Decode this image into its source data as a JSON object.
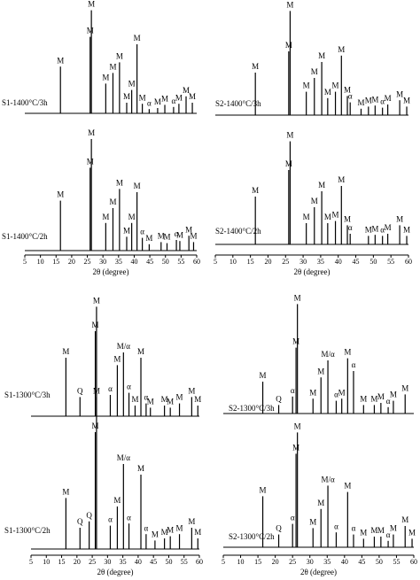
{
  "chart_data": [
    {
      "type": "stem",
      "xlabel": "2θ (degree)",
      "xlim": [
        5,
        60
      ],
      "xticks": [
        5,
        10,
        15,
        20,
        25,
        30,
        35,
        40,
        45,
        50,
        55,
        60
      ],
      "series": [
        {
          "name": "S1-1400°C/3h",
          "color": "#000000",
          "x": [
            16.4,
            25.9,
            26.3,
            30.9,
            33.2,
            35.3,
            37.6,
            39.2,
            40.9,
            42.6,
            44.8,
            47.5,
            49.8,
            52.6,
            54.3,
            56.6,
            58.6
          ],
          "values": [
            44,
            72,
            97,
            28,
            38,
            48,
            10,
            22,
            65,
            9,
            4,
            5,
            8,
            6,
            9,
            16,
            10
          ],
          "annotations": [
            "M",
            "M",
            "M",
            "M",
            "M",
            "M",
            "M",
            "M",
            "M",
            "M",
            "α",
            "M",
            "M",
            "α",
            "M",
            "M",
            "M"
          ]
        },
        {
          "name": "S1-1400°C/2h",
          "color": "#000000",
          "x": [
            16.4,
            25.9,
            26.3,
            30.9,
            33.2,
            35.3,
            37.6,
            39.2,
            40.9,
            42.6,
            44.8,
            48.6,
            50.5,
            53.5,
            54.6,
            57.5,
            59.0
          ],
          "values": [
            47,
            78,
            105,
            26,
            40,
            58,
            13,
            26,
            55,
            12,
            6,
            8,
            7,
            10,
            9,
            14,
            8
          ],
          "annotations": [
            "M",
            "M",
            "M",
            "M",
            "M",
            "M",
            "M",
            "M",
            "M",
            "α",
            "M",
            "M",
            "M",
            "α",
            "M",
            "M",
            "M"
          ]
        }
      ]
    },
    {
      "type": "stem",
      "xlabel": "2θ (degree)",
      "xlim": [
        5,
        60
      ],
      "xticks": [
        5,
        10,
        15,
        20,
        25,
        30,
        35,
        40,
        45,
        50,
        55,
        60
      ],
      "series": [
        {
          "name": "S2-1400°C/3h",
          "color": "#000000",
          "x": [
            16.4,
            25.9,
            26.3,
            30.9,
            33.2,
            35.3,
            37.0,
            39.2,
            40.9,
            42.6,
            43.4,
            46.5,
            48.6,
            50.5,
            52.6,
            54.1,
            57.5,
            59.5
          ],
          "values": [
            40,
            60,
            98,
            22,
            35,
            50,
            16,
            22,
            56,
            18,
            12,
            6,
            8,
            9,
            7,
            10,
            14,
            8
          ],
          "annotations": [
            "M",
            "M",
            "M",
            "M",
            "M",
            "M",
            "M",
            "M",
            "M",
            "M",
            "α",
            "M",
            "M",
            "M",
            "α",
            "M",
            "M",
            "M"
          ]
        },
        {
          "name": "S2-1400°C/2h",
          "color": "#000000",
          "x": [
            16.4,
            25.9,
            26.3,
            30.9,
            33.2,
            35.3,
            37.0,
            39.2,
            40.9,
            42.6,
            43.4,
            48.6,
            50.5,
            52.6,
            54.1,
            57.5,
            59.5
          ],
          "values": [
            45,
            70,
            97,
            20,
            35,
            50,
            20,
            22,
            55,
            18,
            10,
            8,
            9,
            8,
            10,
            18,
            8
          ],
          "annotations": [
            "M",
            "M",
            "M",
            "M",
            "M",
            "M",
            "M",
            "M",
            "M",
            "M",
            "α",
            "M",
            "M",
            "α",
            "M",
            "M",
            "M"
          ]
        }
      ]
    },
    {
      "type": "stem",
      "xlabel": "2θ (degree)",
      "xlim": [
        5,
        60
      ],
      "xticks": [
        5,
        10,
        15,
        20,
        25,
        30,
        35,
        40,
        45,
        50,
        55,
        60
      ],
      "series": [
        {
          "name": "S1-1300°C/3h",
          "color": "#000000",
          "x": [
            16.4,
            21.0,
            26.0,
            26.4,
            30.9,
            33.2,
            35.2,
            37.0,
            39.0,
            40.9,
            42.6,
            44.0,
            48.6,
            50.5,
            53.5,
            57.5,
            59.5
          ],
          "values": [
            55,
            18,
            80,
            103,
            20,
            48,
            60,
            22,
            10,
            55,
            12,
            8,
            10,
            8,
            12,
            18,
            10
          ],
          "annotations": [
            "M",
            "Q",
            "M",
            "M",
            "α",
            "M",
            "M/α",
            "α",
            "M",
            "M",
            "α",
            "M",
            "M",
            "M",
            "M",
            "M",
            "M"
          ]
        },
        {
          "name": "S1-1300°C/2h",
          "color": "#000000",
          "x": [
            16.4,
            21.0,
            24.0,
            26.0,
            26.4,
            30.9,
            33.2,
            35.2,
            37.0,
            40.9,
            42.6,
            45.5,
            48.6,
            50.5,
            53.5,
            57.5,
            59.5
          ],
          "values": [
            48,
            20,
            26,
            110,
            143,
            22,
            40,
            80,
            24,
            70,
            14,
            8,
            10,
            12,
            14,
            20,
            10
          ],
          "annotations": [
            "M",
            "Q",
            "Q",
            "M",
            "M",
            "α",
            "M",
            "M/α",
            "α",
            "M",
            "α",
            "M",
            "M",
            "M",
            "M",
            "M",
            "M"
          ]
        }
      ]
    },
    {
      "type": "stem",
      "xlabel": "2θ (degree)",
      "xlim": [
        5,
        60
      ],
      "xticks": [
        5,
        10,
        15,
        20,
        25,
        30,
        35,
        40,
        45,
        50,
        55,
        60
      ],
      "series": [
        {
          "name": "S2-1300°C/3h",
          "color": "#000000",
          "x": [
            16.4,
            21.0,
            25.0,
            26.0,
            26.4,
            30.9,
            33.2,
            35.2,
            37.6,
            39.2,
            40.9,
            42.6,
            45.5,
            48.6,
            50.5,
            52.6,
            54.1,
            57.5
          ],
          "values": [
            30,
            8,
            16,
            62,
            103,
            14,
            34,
            50,
            12,
            14,
            52,
            40,
            8,
            8,
            10,
            6,
            12,
            18
          ],
          "annotations": [
            "M",
            "Q",
            "α",
            "M",
            "M",
            "M",
            "M",
            "M/α",
            "α",
            "M",
            "M",
            "α",
            "M",
            "M",
            "M",
            "α",
            "M",
            "M"
          ]
        },
        {
          "name": "S2-1300°C/2h",
          "color": "#000000",
          "x": [
            16.4,
            21.0,
            25.0,
            26.0,
            26.4,
            30.9,
            33.2,
            35.2,
            37.6,
            40.9,
            42.6,
            45.5,
            48.6,
            50.5,
            52.6,
            54.1,
            57.5,
            59.5
          ],
          "values": [
            48,
            12,
            22,
            88,
            108,
            18,
            36,
            58,
            14,
            52,
            12,
            8,
            10,
            10,
            6,
            12,
            20,
            8
          ],
          "annotations": [
            "M",
            "Q",
            "α",
            "M",
            "M",
            "M",
            "M",
            "M/α",
            "α",
            "M",
            "α",
            "M",
            "M",
            "M",
            "α",
            "M",
            "M",
            "M"
          ]
        }
      ]
    }
  ]
}
